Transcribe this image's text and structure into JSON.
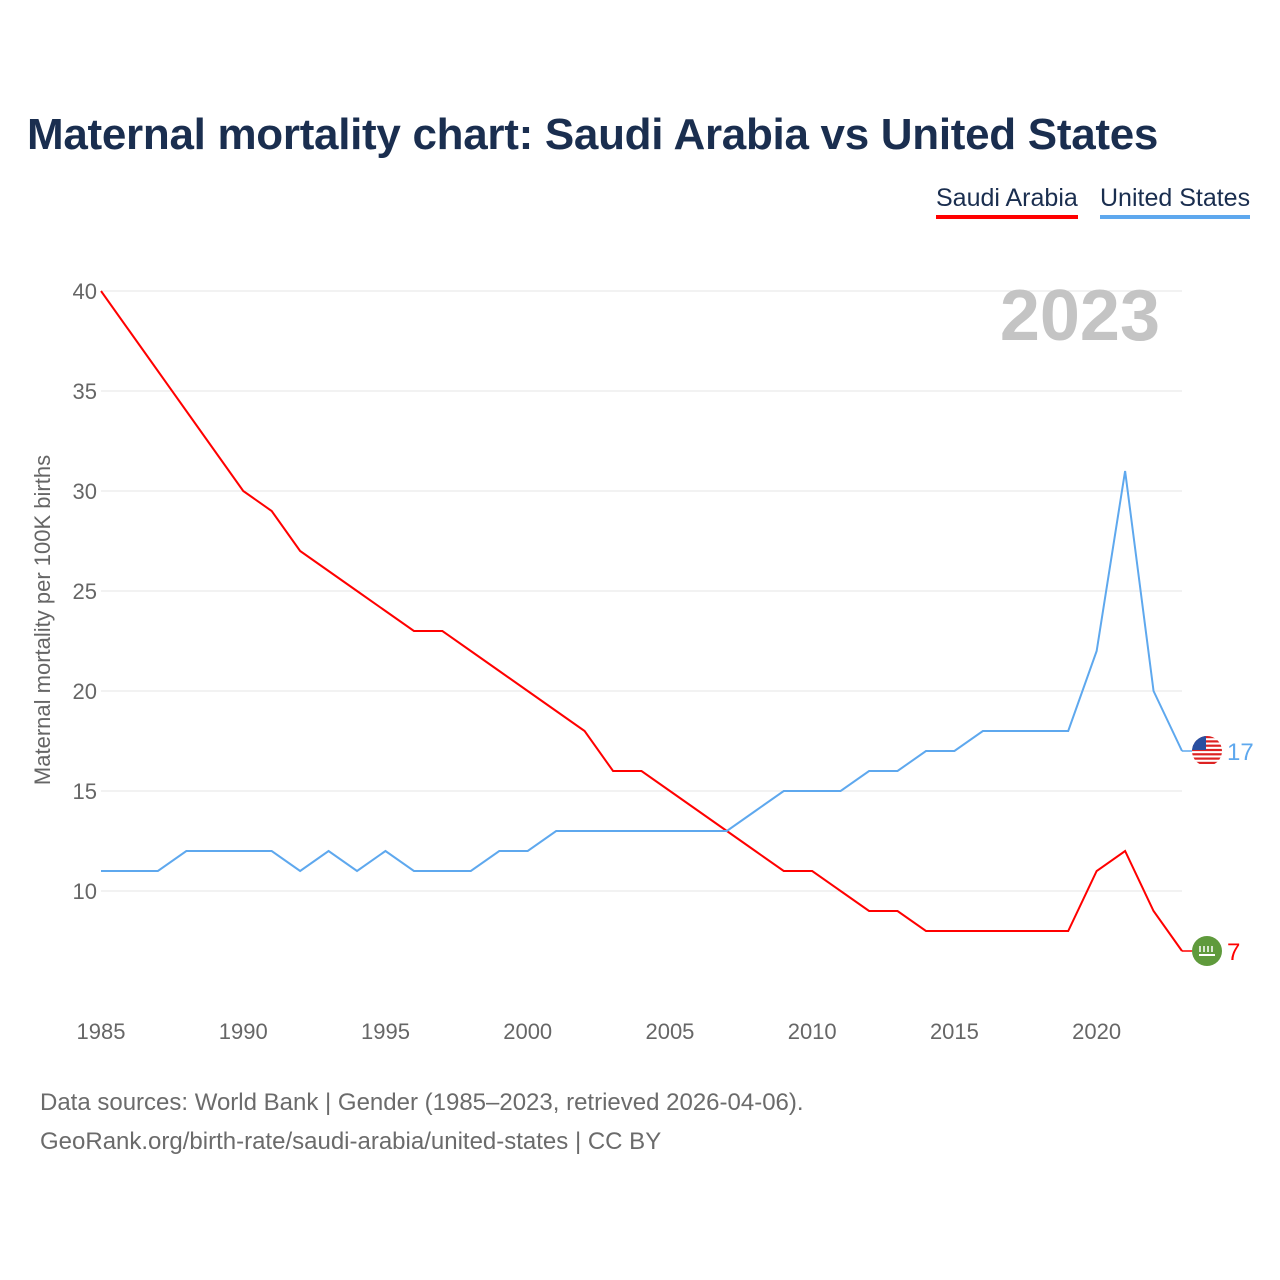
{
  "title": "Maternal mortality chart: Saudi Arabia vs United States",
  "legend": [
    "Saudi Arabia",
    "United States"
  ],
  "year_label": "2023",
  "footer": {
    "line1": "Data sources: World Bank | Gender (1985–2023, retrieved 2026-04-06).",
    "line2": "GeoRank.org/birth-rate/saudi-arabia/united-states | CC BY"
  },
  "chart_data": {
    "type": "line",
    "title": "Maternal mortality chart: Saudi Arabia vs United States",
    "xlabel": "",
    "ylabel": "Maternal mortality per 100K births",
    "xlim": [
      1985,
      2023
    ],
    "ylim": [
      5,
      40
    ],
    "xticks": [
      1985,
      1990,
      1995,
      2000,
      2005,
      2010,
      2015,
      2020
    ],
    "yticks": [
      10,
      15,
      20,
      25,
      30,
      35,
      40
    ],
    "grid": true,
    "legend_position": "top-right",
    "x": [
      1985,
      1986,
      1987,
      1988,
      1989,
      1990,
      1991,
      1992,
      1993,
      1994,
      1995,
      1996,
      1997,
      1998,
      1999,
      2000,
      2001,
      2002,
      2003,
      2004,
      2005,
      2006,
      2007,
      2008,
      2009,
      2010,
      2011,
      2012,
      2013,
      2014,
      2015,
      2016,
      2017,
      2018,
      2019,
      2020,
      2021,
      2022,
      2023
    ],
    "series": [
      {
        "name": "Saudi Arabia",
        "color": "#ff0000",
        "flag": "saudi-arabia",
        "end_label": "7",
        "values": [
          40,
          38,
          36,
          34,
          32,
          30,
          29,
          27,
          26,
          25,
          24,
          23,
          23,
          22,
          21,
          20,
          19,
          18,
          16,
          16,
          15,
          14,
          13,
          12,
          11,
          11,
          10,
          9,
          9,
          8,
          8,
          8,
          8,
          8,
          8,
          11,
          12,
          9,
          7
        ]
      },
      {
        "name": "United States",
        "color": "#5ea8ee",
        "flag": "united-states",
        "end_label": "17",
        "values": [
          11,
          11,
          11,
          12,
          12,
          12,
          12,
          11,
          12,
          11,
          12,
          11,
          11,
          11,
          12,
          12,
          13,
          13,
          13,
          13,
          13,
          13,
          13,
          14,
          15,
          15,
          15,
          16,
          16,
          17,
          17,
          18,
          18,
          18,
          18,
          22,
          31,
          20,
          17
        ]
      }
    ]
  }
}
